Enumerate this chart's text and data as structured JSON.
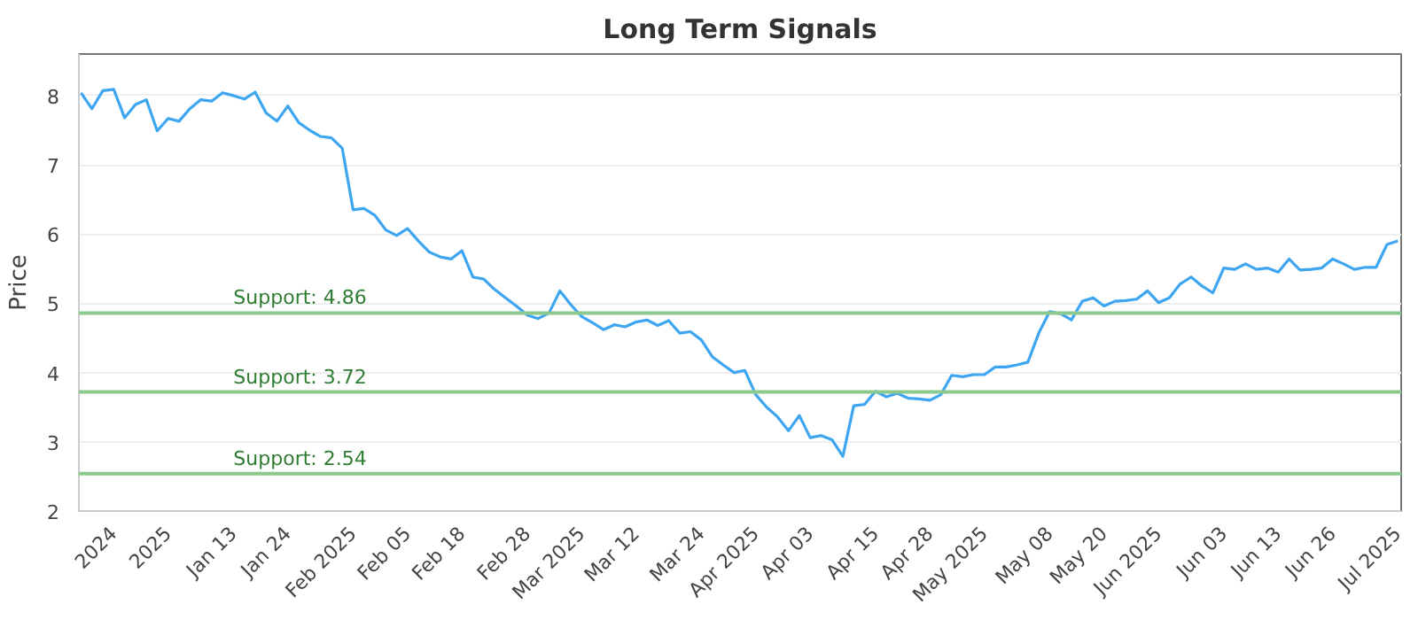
{
  "chart_data": {
    "type": "line",
    "title": "Long Term Signals",
    "ylabel": "Price",
    "categories": [
      null,
      null,
      null,
      "2024",
      null,
      null,
      null,
      null,
      "2025",
      null,
      null,
      null,
      null,
      null,
      "Jan 13",
      null,
      null,
      null,
      null,
      "Jan 24",
      null,
      null,
      null,
      null,
      null,
      "Feb 2025",
      null,
      null,
      null,
      null,
      "Feb 05",
      null,
      null,
      null,
      null,
      "Feb 18",
      null,
      null,
      null,
      null,
      null,
      "Feb 28",
      null,
      null,
      null,
      null,
      "Mar 2025",
      null,
      null,
      null,
      null,
      "Mar 12",
      null,
      null,
      null,
      null,
      null,
      "Mar 24",
      null,
      null,
      null,
      null,
      "Apr 2025",
      null,
      null,
      null,
      null,
      "Apr 03",
      null,
      null,
      null,
      null,
      null,
      "Apr 15",
      null,
      null,
      null,
      null,
      "Apr 28",
      null,
      null,
      null,
      null,
      "May 2025",
      null,
      null,
      null,
      null,
      null,
      "May 08",
      null,
      null,
      null,
      null,
      "May 20",
      null,
      null,
      null,
      null,
      "Jun 2025",
      null,
      null,
      null,
      null,
      null,
      "Jun 03",
      null,
      null,
      null,
      null,
      "Jun 13",
      null,
      null,
      null,
      null,
      "Jun 26",
      null,
      null,
      null,
      null,
      null,
      "Jul 2025"
    ],
    "series": [
      {
        "color": "#3ea6f0",
        "values": [
          8.04,
          7.81,
          8.07,
          8.09,
          7.68,
          7.87,
          7.94,
          7.49,
          7.67,
          7.63,
          7.81,
          7.94,
          7.92,
          8.04,
          8.0,
          7.95,
          8.05,
          7.75,
          7.63,
          7.85,
          7.61,
          7.5,
          7.41,
          7.39,
          7.24,
          6.35,
          6.37,
          6.27,
          6.06,
          5.98,
          6.08,
          5.9,
          5.74,
          5.67,
          5.64,
          5.76,
          5.38,
          5.35,
          5.2,
          5.08,
          4.96,
          4.83,
          4.78,
          4.86,
          5.18,
          4.98,
          4.81,
          4.72,
          4.62,
          4.69,
          4.66,
          4.73,
          4.76,
          4.68,
          4.75,
          4.57,
          4.59,
          4.47,
          4.23,
          4.11,
          4.0,
          4.03,
          3.68,
          3.5,
          3.36,
          3.16,
          3.38,
          3.06,
          3.09,
          3.03,
          2.79,
          3.52,
          3.54,
          3.73,
          3.65,
          3.7,
          3.63,
          3.62,
          3.6,
          3.68,
          3.96,
          3.94,
          3.97,
          3.97,
          4.08,
          4.08,
          4.11,
          4.15,
          4.57,
          4.88,
          4.85,
          4.76,
          5.03,
          5.08,
          4.96,
          5.03,
          5.04,
          5.06,
          5.18,
          5.01,
          5.08,
          5.28,
          5.38,
          5.25,
          5.15,
          5.51,
          5.49,
          5.57,
          5.49,
          5.51,
          5.45,
          5.64,
          5.48,
          5.49,
          5.51,
          5.64,
          5.57,
          5.49,
          5.52,
          5.52,
          5.85,
          5.9
        ]
      }
    ],
    "ylim": [
      2,
      8.6
    ],
    "yticks": [
      2,
      3,
      4,
      5,
      6,
      7,
      8
    ],
    "grid": "y",
    "marker": "none",
    "line_style": "solid",
    "ref_lines": [
      {
        "axis": "y",
        "value": 4.86,
        "label": "Support: 4.86",
        "color": "#8cc98c"
      },
      {
        "axis": "y",
        "value": 3.72,
        "label": "Support: 3.72",
        "color": "#8cc98c"
      },
      {
        "axis": "y",
        "value": 2.54,
        "label": "Support: 2.54",
        "color": "#8cc98c"
      }
    ]
  }
}
